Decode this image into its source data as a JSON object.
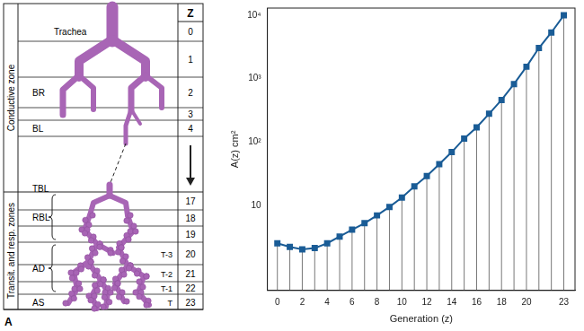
{
  "chart_data": {
    "type": "line",
    "x_label": "Generation (z)",
    "y_label": "A(z) cm²",
    "x": [
      0,
      1,
      2,
      3,
      4,
      5,
      6,
      7,
      8,
      9,
      10,
      11,
      12,
      13,
      14,
      15,
      16,
      17,
      18,
      19,
      20,
      21,
      22,
      23
    ],
    "values": [
      2.5,
      2.2,
      2.0,
      2.1,
      2.5,
      3.2,
      4.1,
      5.2,
      6.9,
      9.4,
      13.2,
      19.8,
      28.8,
      44.5,
      69,
      113,
      170,
      278,
      460,
      820,
      1540,
      3040,
      5350,
      10000
    ],
    "color": "#1a5c96",
    "marker": "square",
    "line_style": "solid",
    "log": "y",
    "grid": false,
    "xlim": [
      -0.8,
      23.9
    ],
    "xticks": [
      0,
      2,
      4,
      6,
      8,
      10,
      12,
      14,
      16,
      18,
      20,
      23
    ],
    "ylim": [
      0.45,
      13000
    ],
    "yticks": [
      10,
      {
        "value": 100,
        "label": "10²"
      },
      {
        "value": 1000,
        "label": "10³"
      },
      {
        "value": 10000,
        "label": "10⁴"
      }
    ]
  },
  "diagram": {
    "panel_label": "A",
    "z_header": "Z",
    "zones": [
      {
        "label": "Conductive zone",
        "rows": [
          {
            "z": 0,
            "name": "Trachea"
          },
          {
            "z": 1
          },
          {
            "z": 2,
            "group": "BR"
          },
          {
            "z": 3
          },
          {
            "z": 4,
            "group": "BL"
          },
          {
            "z": null,
            "group": "TBL"
          }
        ]
      },
      {
        "label": "Transit. and resp. zones",
        "rows": [
          {
            "z": 17,
            "group": "RBL"
          },
          {
            "z": 18,
            "group": "RBL"
          },
          {
            "z": 19,
            "group": "RBL"
          },
          {
            "z": 20,
            "group": "AD",
            "tag": "T-3"
          },
          {
            "z": 21,
            "group": "AD",
            "tag": "T-2"
          },
          {
            "z": 22,
            "group": "AD",
            "tag": "T-1"
          },
          {
            "z": 23,
            "group": "AS",
            "tag": "T"
          }
        ]
      }
    ]
  }
}
